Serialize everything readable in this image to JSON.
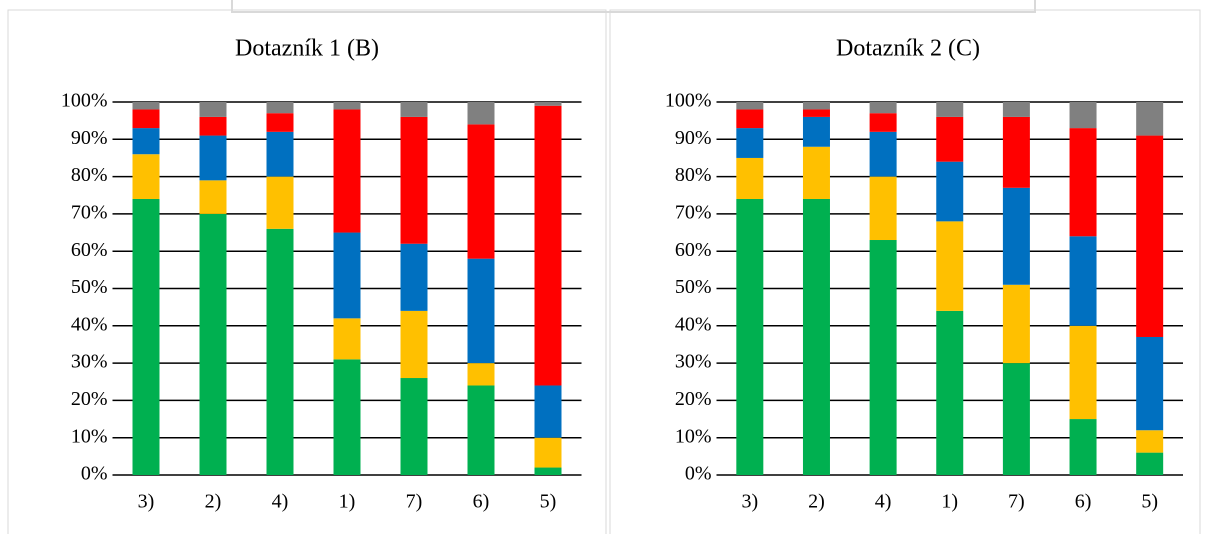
{
  "chart_data": [
    {
      "type": "stacked_bar",
      "title": "Dotazník 1 (B)",
      "categories": [
        "3)",
        "2)",
        "4)",
        "1)",
        "7)",
        "6)",
        "5)"
      ],
      "series": [
        {
          "color": "#00b050",
          "values": [
            74,
            70,
            66,
            31,
            26,
            24,
            2
          ]
        },
        {
          "color": "#ffc000",
          "values": [
            12,
            9,
            14,
            11,
            18,
            6,
            8
          ]
        },
        {
          "color": "#0070c0",
          "values": [
            7,
            12,
            12,
            23,
            18,
            28,
            14
          ]
        },
        {
          "color": "#ff0000",
          "values": [
            5,
            5,
            5,
            33,
            34,
            36,
            75
          ]
        },
        {
          "color": "#808080",
          "values": [
            2,
            4,
            3,
            2,
            4,
            6,
            1
          ]
        }
      ],
      "ylim": [
        0,
        100
      ],
      "yticks": [
        {
          "value": 0,
          "label": "0%"
        },
        {
          "value": 10,
          "label": "10%"
        },
        {
          "value": 20,
          "label": "20%"
        },
        {
          "value": 30,
          "label": "30%"
        },
        {
          "value": 40,
          "label": "40%"
        },
        {
          "value": 50,
          "label": "50%"
        },
        {
          "value": 60,
          "label": "60%"
        },
        {
          "value": 70,
          "label": "70%"
        },
        {
          "value": 80,
          "label": "80%"
        },
        {
          "value": 90,
          "label": "90%"
        },
        {
          "value": 100,
          "label": "100%"
        }
      ],
      "grid": true
    },
    {
      "type": "stacked_bar",
      "title": "Dotazník 2 (C)",
      "categories": [
        "3)",
        "2)",
        "4)",
        "1)",
        "7)",
        "6)",
        "5)"
      ],
      "series": [
        {
          "color": "#00b050",
          "values": [
            74,
            74,
            63,
            44,
            30,
            15,
            6
          ]
        },
        {
          "color": "#ffc000",
          "values": [
            11,
            14,
            17,
            24,
            21,
            25,
            6
          ]
        },
        {
          "color": "#0070c0",
          "values": [
            8,
            8,
            12,
            16,
            26,
            24,
            25
          ]
        },
        {
          "color": "#ff0000",
          "values": [
            5,
            2,
            5,
            12,
            19,
            29,
            54
          ]
        },
        {
          "color": "#808080",
          "values": [
            2,
            2,
            3,
            4,
            4,
            7,
            9
          ]
        }
      ],
      "ylim": [
        0,
        100
      ],
      "yticks": [
        {
          "value": 0,
          "label": "0%"
        },
        {
          "value": 10,
          "label": "10%"
        },
        {
          "value": 20,
          "label": "20%"
        },
        {
          "value": 30,
          "label": "30%"
        },
        {
          "value": 40,
          "label": "40%"
        },
        {
          "value": 50,
          "label": "50%"
        },
        {
          "value": 60,
          "label": "60%"
        },
        {
          "value": 70,
          "label": "70%"
        },
        {
          "value": 80,
          "label": "80%"
        },
        {
          "value": 90,
          "label": "90%"
        },
        {
          "value": 100,
          "label": "100%"
        }
      ],
      "grid": true
    }
  ]
}
